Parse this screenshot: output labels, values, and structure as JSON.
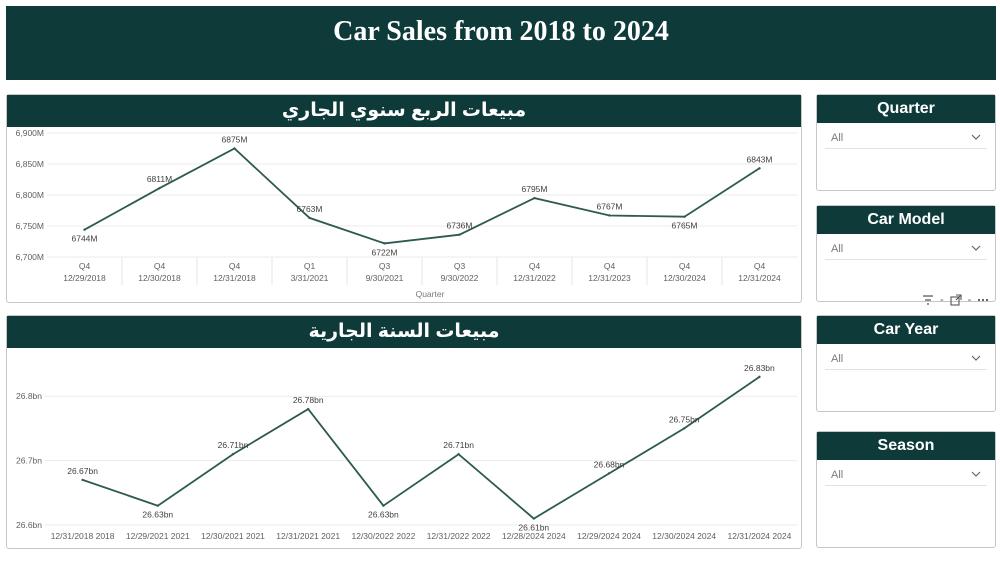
{
  "header": {
    "title": "Car Sales from 2018 to 2024"
  },
  "quarter_chart": {
    "title": "مبيعات الربع سنوي الجاري",
    "xlabel": "Quarter",
    "line_color": "#2d5a52"
  },
  "year_chart": {
    "title": "مبيعات السنة الجارية",
    "line_color": "#2d5a52"
  },
  "slicers": [
    {
      "title": "Quarter",
      "value": "All"
    },
    {
      "title": "Car Model",
      "value": "All"
    },
    {
      "title": "Car Year",
      "value": "All"
    },
    {
      "title": "Season",
      "value": "All"
    }
  ],
  "toolbar": {
    "icons": [
      "filter-icon",
      "focus-mode-icon",
      "more-options-icon"
    ]
  },
  "colors": {
    "header_bg": "#0e3b3a",
    "panel_border": "#c6c6c6",
    "line": "#2d5a52"
  },
  "chart_data": [
    {
      "type": "line",
      "title": "مبيعات الربع سنوي الجاري",
      "xlabel": "Quarter",
      "ylabel": "",
      "categories_top": [
        "Q4",
        "Q4",
        "Q4",
        "Q1",
        "Q3",
        "Q3",
        "Q4",
        "Q4",
        "Q4",
        "Q4"
      ],
      "categories": [
        "12/29/2018",
        "12/30/2018",
        "12/31/2018",
        "3/31/2021",
        "9/30/2021",
        "9/30/2022",
        "12/31/2022",
        "12/31/2023",
        "12/30/2024",
        "12/31/2024"
      ],
      "values": [
        6744,
        6811,
        6875,
        6763,
        6722,
        6736,
        6795,
        6767,
        6765,
        6843
      ],
      "data_labels": [
        "6744M",
        "6811M",
        "6875M",
        "6763M",
        "6722M",
        "6736M",
        "6795M",
        "6767M",
        "6765M",
        "6843M"
      ],
      "yticks": [
        6700,
        6750,
        6800,
        6850,
        6900
      ],
      "ytick_labels": [
        "6,700M",
        "6,750M",
        "6,800M",
        "6,850M",
        "6,900M"
      ],
      "ylim": [
        6700,
        6900
      ],
      "grid": true
    },
    {
      "type": "line",
      "title": "مبيعات السنة الجارية",
      "xlabel": "",
      "ylabel": "",
      "categories": [
        "12/31/2018 2018",
        "12/29/2021 2021",
        "12/30/2021 2021",
        "12/31/2021 2021",
        "12/30/2022 2022",
        "12/31/2022 2022",
        "12/28/2024 2024",
        "12/29/2024 2024",
        "12/30/2024 2024",
        "12/31/2024 2024"
      ],
      "values": [
        26.67,
        26.63,
        26.71,
        26.78,
        26.63,
        26.71,
        26.61,
        26.68,
        26.75,
        26.83
      ],
      "data_labels": [
        "26.67bn",
        "26.63bn",
        "26.71bn",
        "26.78bn",
        "26.63bn",
        "26.71bn",
        "26.61bn",
        "26.68bn",
        "26.75bn",
        "26.83bn"
      ],
      "yticks": [
        26.6,
        26.7,
        26.8
      ],
      "ytick_labels": [
        "26.6bn",
        "26.7bn",
        "26.8bn"
      ],
      "ylim": [
        26.6,
        26.85
      ],
      "grid": true
    }
  ]
}
